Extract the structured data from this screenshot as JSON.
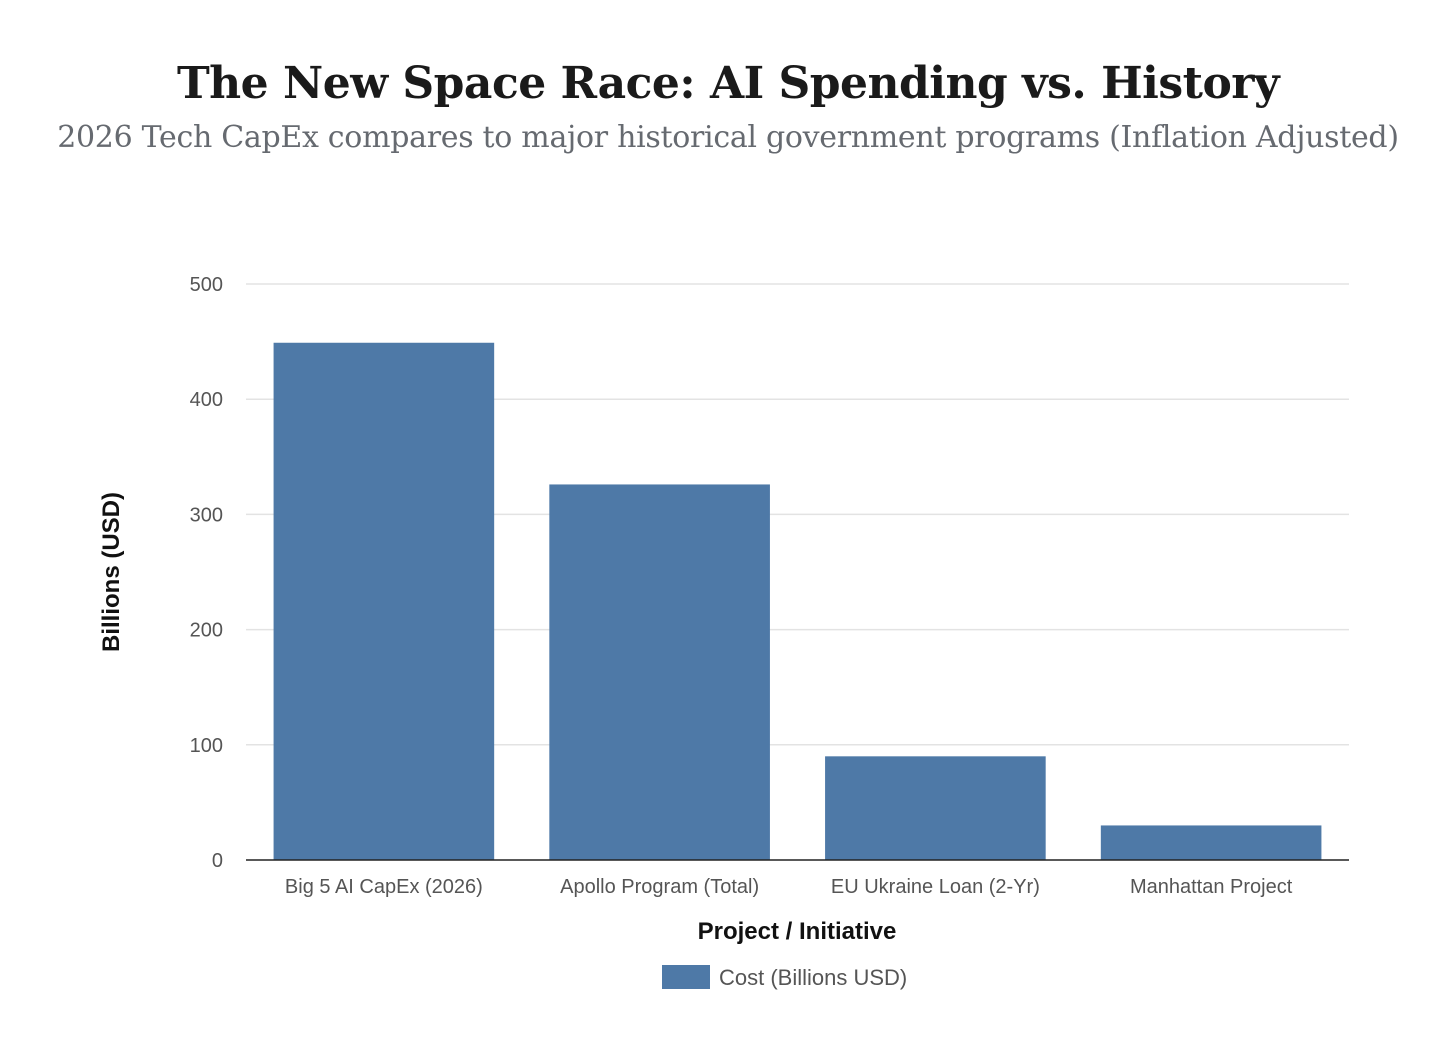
{
  "chart_data": {
    "type": "bar",
    "title": "The New Space Race: AI Spending vs. History",
    "subtitle": "2026 Tech CapEx compares to major historical government programs (Inflation Adjusted)",
    "xlabel": "Project / Initiative",
    "ylabel": "Billions (USD)",
    "categories": [
      "Big 5 AI CapEx (2026)",
      "Apollo Program (Total)",
      "EU Ukraine Loan (2-Yr)",
      "Manhattan Project"
    ],
    "series": [
      {
        "name": "Cost (Billions USD)",
        "color": "#4e79a7",
        "values": [
          449,
          326,
          90,
          30
        ]
      }
    ],
    "ylim": [
      0,
      500
    ],
    "yticks": [
      "0",
      "100",
      "200",
      "300",
      "400",
      "500"
    ],
    "grid": true,
    "legend_position": "bottom-center"
  }
}
